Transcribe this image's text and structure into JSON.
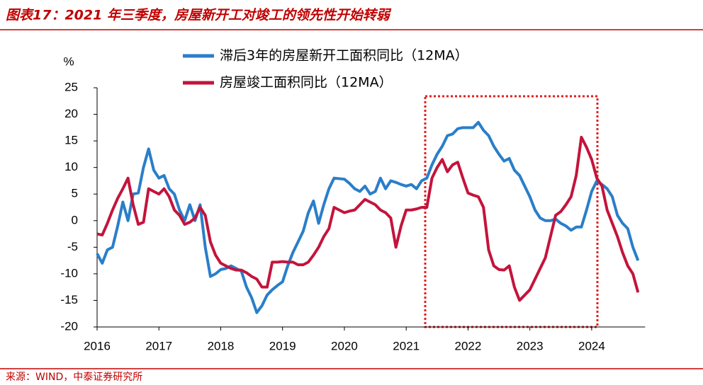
{
  "chart_data": {
    "type": "line",
    "title": "图表17：2021 年三季度，房屋新开工对竣工的领先性开始转弱",
    "ylabel": "%",
    "source": "来源：WIND，中泰证券研究所",
    "categories": [
      "2016",
      null,
      null,
      null,
      null,
      null,
      null,
      null,
      null,
      null,
      null,
      null,
      "2017",
      null,
      null,
      null,
      null,
      null,
      null,
      null,
      null,
      null,
      null,
      null,
      "2018",
      null,
      null,
      null,
      null,
      null,
      null,
      null,
      null,
      null,
      null,
      null,
      "2019",
      null,
      null,
      null,
      null,
      null,
      null,
      null,
      null,
      null,
      null,
      null,
      "2020",
      null,
      null,
      null,
      null,
      null,
      null,
      null,
      null,
      null,
      null,
      null,
      "2021",
      null,
      null,
      null,
      null,
      null,
      null,
      null,
      null,
      null,
      null,
      null,
      "2022",
      null,
      null,
      null,
      null,
      null,
      null,
      null,
      null,
      null,
      null,
      null,
      "2023",
      null,
      null,
      null,
      null,
      null,
      null,
      null,
      null,
      null,
      null,
      null,
      "2024",
      null,
      null,
      null,
      null,
      null,
      null,
      null,
      null,
      null
    ],
    "series": [
      {
        "name": "滞后3年的房屋新开工面积同比（12MA）",
        "color": "#2a7ec9",
        "values": [
          -6.2,
          -8,
          -5.5,
          -5,
          -1,
          3.5,
          0,
          5,
          5.2,
          10,
          13.5,
          9.5,
          8,
          8.5,
          6,
          5,
          2,
          0,
          3,
          0,
          3,
          -5,
          -10.5,
          -10,
          -9.2,
          -9,
          -8.5,
          -9,
          -9.5,
          -12.5,
          -14.5,
          -17.3,
          -16,
          -14,
          -13,
          -12.2,
          -11.5,
          -8.5,
          -6,
          -4,
          -2,
          1.5,
          3.7,
          -0.5,
          3,
          6,
          8,
          7.9,
          7.8,
          7,
          6,
          5.5,
          6.5,
          5,
          5.5,
          8,
          6,
          7.5,
          7.2,
          6.8,
          6.5,
          6.8,
          6,
          7.5,
          8,
          10.5,
          12.5,
          14,
          16,
          16.3,
          17.3,
          17.5,
          17.5,
          17.5,
          18.5,
          17,
          16,
          14,
          12.5,
          11.2,
          11.7,
          9.5,
          8.5,
          6.5,
          4.5,
          2,
          0.5,
          0,
          0,
          0.3,
          -0.5,
          -1,
          -1.8,
          -1.2,
          -1.2,
          2,
          5.5,
          7.5,
          6.8,
          6,
          4.5,
          1,
          -0.5,
          -1.5,
          -5,
          -7.5
        ]
      },
      {
        "name": "房屋竣工面积同比（12MA）",
        "color": "#c3143c",
        "values": [
          -2.5,
          -2.7,
          -0.5,
          2,
          4.2,
          6,
          8,
          3,
          -0.7,
          -0.3,
          6,
          5.5,
          5,
          6,
          4.5,
          2,
          1,
          -0.7,
          -0.3,
          0.5,
          2.5,
          1,
          -4,
          -6.5,
          -8,
          -8.5,
          -9,
          -9.3,
          -9.3,
          -9.8,
          -10.5,
          -11,
          -12.5,
          -12.5,
          -7.8,
          -7.8,
          -7.7,
          -7.8,
          -7.8,
          -8.3,
          -8.3,
          -7.8,
          -6.5,
          -5,
          -3,
          -1.5,
          2.5,
          2,
          1.5,
          1.8,
          2,
          3,
          4,
          3.5,
          3,
          2,
          1.5,
          0.5,
          -5,
          -1,
          2,
          2,
          2.2,
          2.5,
          2.5,
          8,
          10,
          11.5,
          9.2,
          10.5,
          11,
          8,
          5.2,
          4.8,
          4.5,
          2.5,
          -5.5,
          -8.5,
          -9.2,
          -9.3,
          -8.5,
          -12.5,
          -15,
          -14,
          -13,
          -11,
          -9,
          -7,
          -3,
          1,
          1.7,
          3,
          4.5,
          8.5,
          15.7,
          13.8,
          11.5,
          8,
          6.5,
          2,
          -0.5,
          -3,
          -6,
          -8.5,
          -10,
          -13.5
        ]
      }
    ],
    "ylim": [
      -20,
      25
    ],
    "yticks": [
      -20,
      -15,
      -10,
      -5,
      0,
      5,
      10,
      15,
      20,
      25
    ]
  }
}
